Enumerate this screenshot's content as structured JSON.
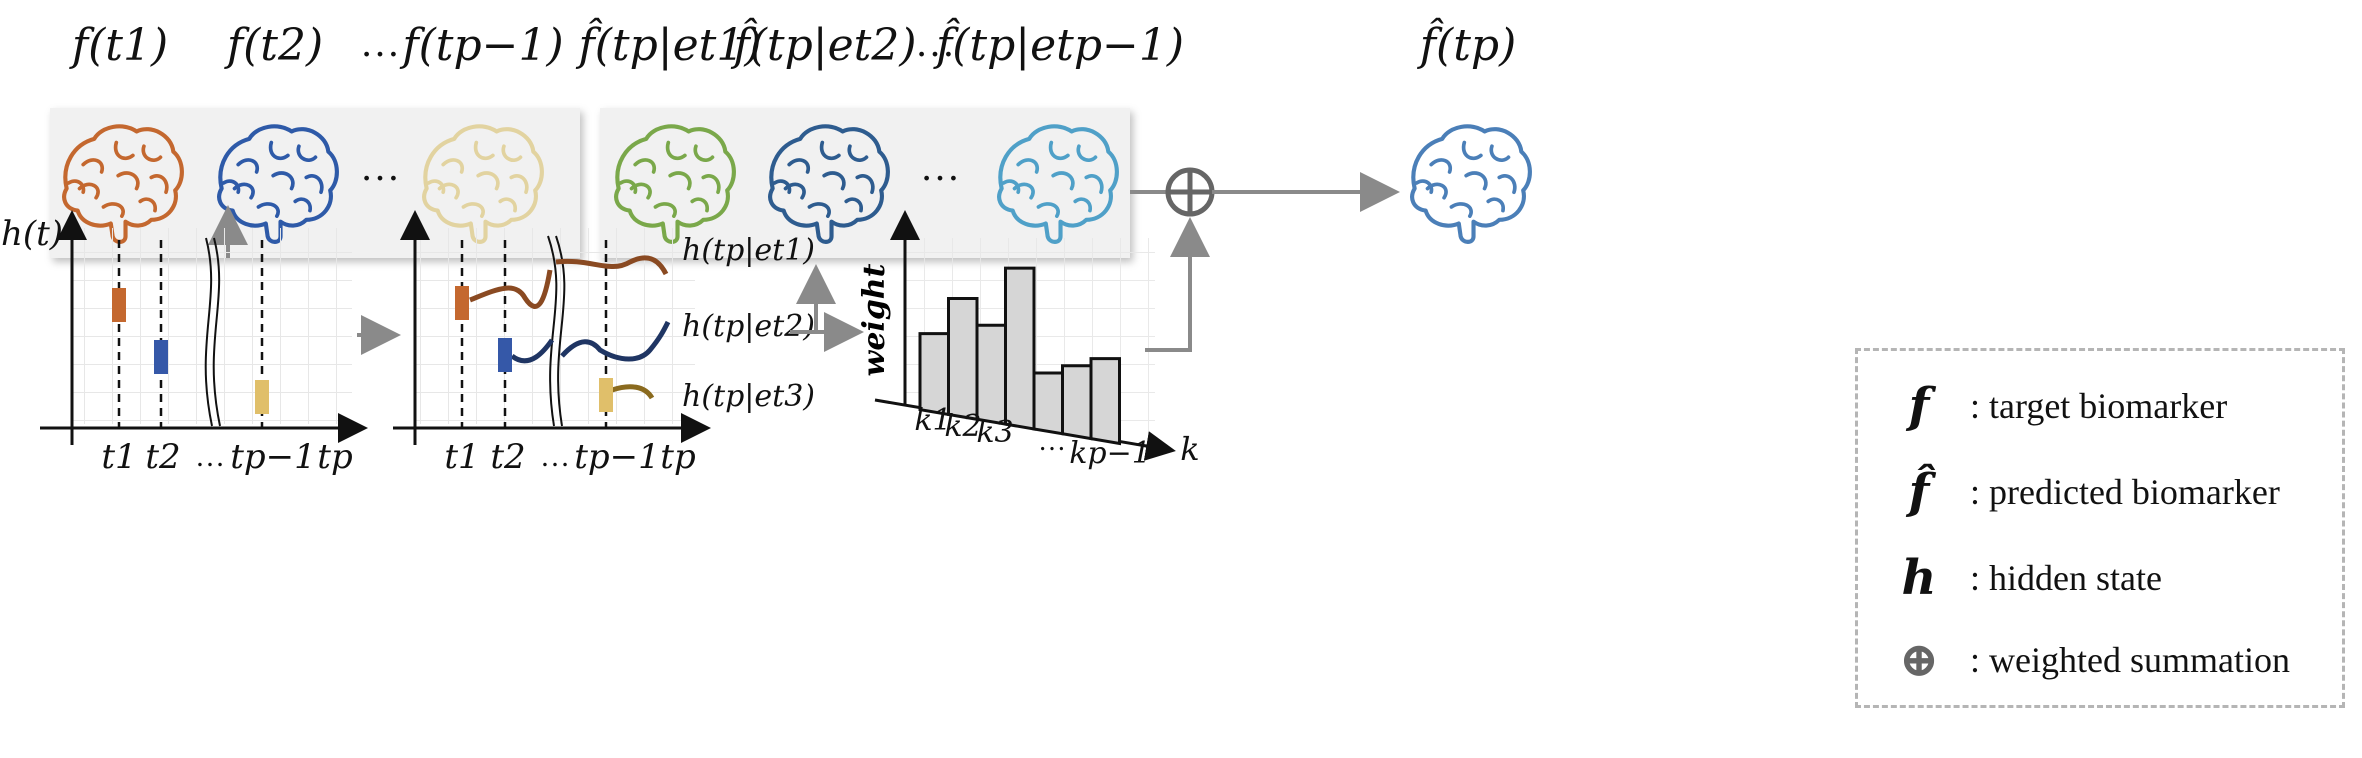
{
  "top_labels": {
    "observed": [
      "f(t1)",
      "f(t2)",
      "…",
      "f(tp−1)"
    ],
    "predicted": [
      "f̂(tp|et1)",
      "f̂(tp|et2)",
      "…",
      "f̂(tp|etp−1)"
    ],
    "final": "f̂(tp)"
  },
  "ellipsis": "…",
  "colors": {
    "brain_observed": [
      "#c4682f",
      "#2e5aa8",
      "#e2d3a0"
    ],
    "brain_predicted": [
      "#7aa84a",
      "#2e5c8f",
      "#4fa0c8"
    ],
    "brain_final": "#4b7fb8",
    "bar_t1": "#c4682f",
    "bar_t2": "#3558a8",
    "bar_tp1": "#e0bf6a",
    "curve_1": "#8a4a22",
    "curve_2": "#1f3563",
    "curve_3": "#8a6a1e",
    "arrow": "#8a8a8a",
    "histogram_fill": "#d6d6d6"
  },
  "chart1": {
    "ylabel": "h(t)",
    "ticks": [
      "t1",
      "t2",
      "…",
      "tp−1",
      "tp"
    ]
  },
  "chart2": {
    "ticks": [
      "t1",
      "t2",
      "…",
      "tp−1",
      "tp"
    ],
    "curve_labels": [
      "h(tp|et1)",
      "h(tp|et2)",
      "h(tp|et3)"
    ]
  },
  "histogram": {
    "ylabel": "weight",
    "xlabel": "k",
    "ticks": [
      "k1",
      "k2",
      "k3",
      "…",
      "kp−1"
    ],
    "values": [
      0.38,
      0.58,
      0.47,
      0.78,
      0.28,
      0.34,
      0.4
    ]
  },
  "legend": [
    {
      "symbol": "f",
      "text": ": target biomarker"
    },
    {
      "symbol": "f̂",
      "text": ": predicted biomarker"
    },
    {
      "symbol": "h",
      "text": ": hidden state"
    },
    {
      "symbol": "⊕",
      "text": ": weighted summation"
    }
  ]
}
